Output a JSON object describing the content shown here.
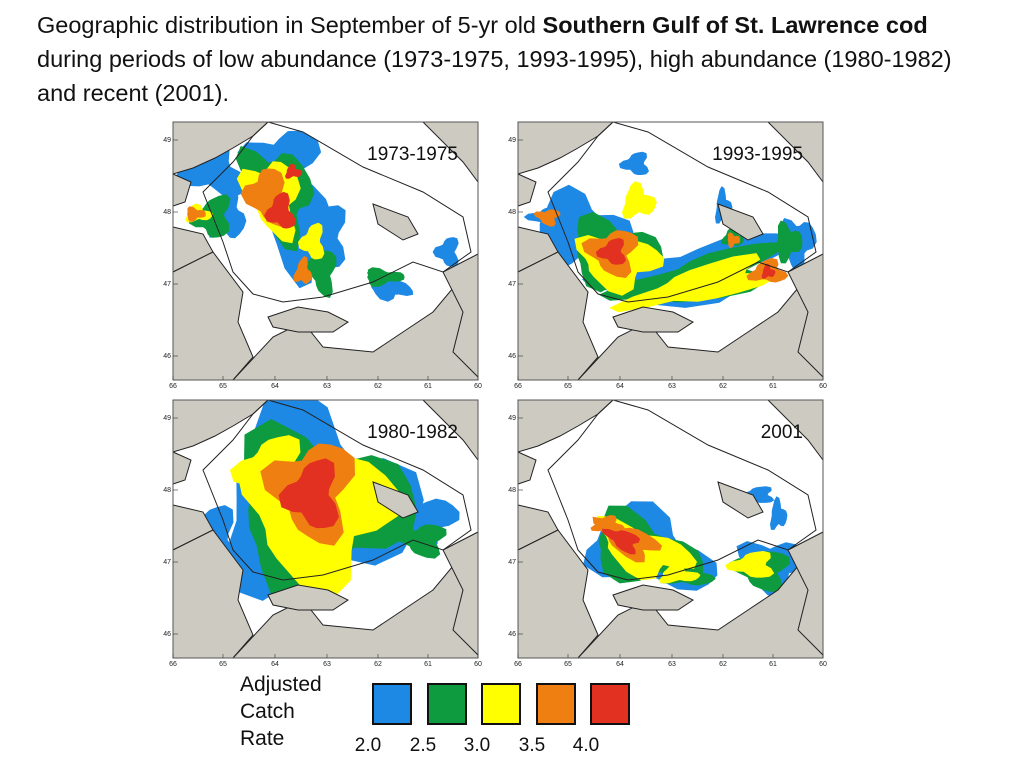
{
  "title": {
    "prefix": "Geographic distribution in September of 5-yr old ",
    "species": "Southern Gulf of St. Lawrence cod",
    "suffix": " during periods of low abundance (1973-1975, 1993-1995), high abundance (1980-1982) and recent (2001)."
  },
  "maps": [
    {
      "period": "1973-1975",
      "abundance": "low",
      "hotspot": "northwest",
      "peak_rate": 4.0
    },
    {
      "period": "1993-1995",
      "abundance": "low",
      "hotspot": "western and southern Gulf",
      "peak_rate": 4.0
    },
    {
      "period": "1980-1982",
      "abundance": "high",
      "hotspot": "central-west, widespread",
      "peak_rate": 4.0
    },
    {
      "period": "2001",
      "abundance": "recent",
      "hotspot": "southwest band",
      "peak_rate": 4.0
    }
  ],
  "axes": {
    "x_ticks": [
      "66",
      "65",
      "64",
      "63",
      "62",
      "61",
      "60"
    ],
    "y_ticks": [
      "49",
      "48",
      "47",
      "46"
    ]
  },
  "legend": {
    "label_lines": [
      "Adjusted",
      "Catch",
      "Rate"
    ],
    "classes": [
      {
        "value": "2.0",
        "color": "#1e88e5"
      },
      {
        "value": "2.5",
        "color": "#0e9a3e"
      },
      {
        "value": "3.0",
        "color": "#ffff00"
      },
      {
        "value": "3.5",
        "color": "#f07f12"
      },
      {
        "value": "4.0",
        "color": "#e23121"
      }
    ]
  },
  "colors": {
    "land": "#cdcac2",
    "water": "#ffffff",
    "coast": "#222222"
  }
}
